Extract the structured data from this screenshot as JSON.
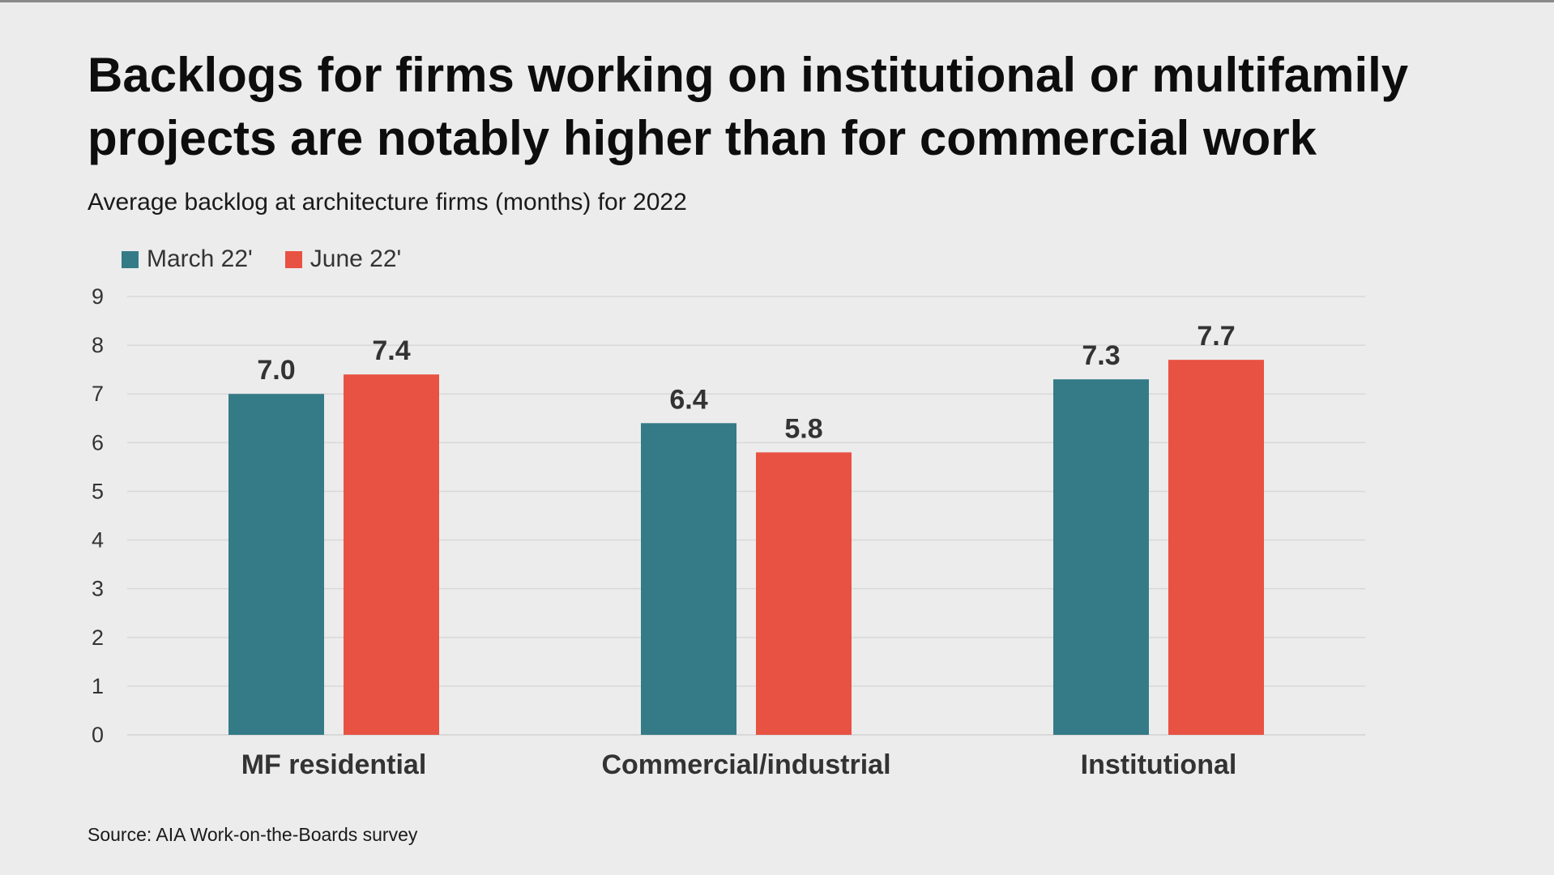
{
  "title": "Backlogs for firms working on institutional or multifamily projects are notably higher than for commercial work",
  "subtitle": "Average backlog at architecture firms (months) for 2022",
  "source": "Source: AIA Work-on-the-Boards survey",
  "colors": {
    "march": "#347b87",
    "june": "#e85243",
    "grid": "#d8d8d8",
    "background": "#ececec"
  },
  "legend": {
    "items": [
      {
        "label": "March 22'",
        "color": "#347b87"
      },
      {
        "label": "June 22'",
        "color": "#e85243"
      }
    ],
    "placement": "top-left"
  },
  "chart_data": {
    "type": "bar",
    "title": "Backlogs for firms working on institutional or multifamily projects are notably higher than for commercial work",
    "subtitle": "Average backlog at architecture firms (months) for 2022",
    "categories": [
      "MF residential",
      "Commercial/industrial",
      "Institutional"
    ],
    "series": [
      {
        "name": "March 22'",
        "color": "#347b87",
        "values": [
          7.0,
          6.4,
          7.3
        ],
        "labels": [
          "7.0",
          "6.4",
          "7.3"
        ]
      },
      {
        "name": "June 22'",
        "color": "#e85243",
        "values": [
          7.4,
          5.8,
          7.7
        ],
        "labels": [
          "7.4",
          "5.8",
          "7.7"
        ]
      }
    ],
    "yticks": [
      "0",
      "1",
      "2",
      "3",
      "4",
      "5",
      "6",
      "7",
      "8",
      "9"
    ],
    "ylim": [
      0,
      9
    ],
    "xlabel": "",
    "ylabel": "",
    "grid": true,
    "legend": "top-left"
  }
}
